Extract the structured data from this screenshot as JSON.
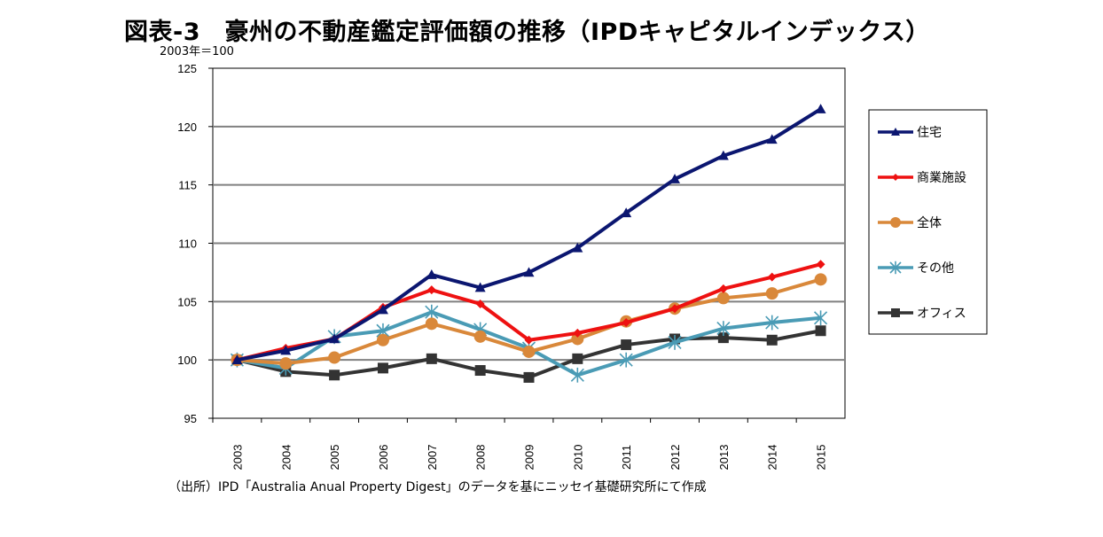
{
  "title": "図表-3　豪州の不動産鑑定評価額の推移（IPDキャピタルインデックス）",
  "unit_label": "2003年＝100",
  "source": "（出所）IPD「Australia Anual Property Digest」のデータを基にニッセイ基礎研究所にて作成",
  "chart_data": {
    "type": "line",
    "title": "図表-3　豪州の不動産鑑定評価額の推移（IPDキャピタルインデックス）",
    "xlabel": "",
    "ylabel": "2003年＝100",
    "categories": [
      "2003",
      "2004",
      "2005",
      "2006",
      "2007",
      "2008",
      "2009",
      "2010",
      "2011",
      "2012",
      "2013",
      "2014",
      "2015"
    ],
    "ylim": [
      95,
      125
    ],
    "yticks": [
      95,
      100,
      105,
      110,
      115,
      120,
      125
    ],
    "grid": true,
    "legend_position": "right",
    "series": [
      {
        "name": "住宅",
        "color": "#0b1670",
        "marker": "triangle",
        "values": [
          100,
          100.8,
          101.8,
          104.3,
          107.3,
          106.2,
          107.5,
          109.6,
          112.6,
          115.5,
          117.5,
          118.9,
          121.5
        ]
      },
      {
        "name": "商業施設",
        "color": "#ee1111",
        "marker": "diamond",
        "values": [
          100,
          101.0,
          101.8,
          104.5,
          106.0,
          104.8,
          101.7,
          102.3,
          103.2,
          104.4,
          106.1,
          107.1,
          108.2
        ]
      },
      {
        "name": "全体",
        "color": "#d9883a",
        "marker": "circle",
        "values": [
          100,
          99.7,
          100.2,
          101.7,
          103.1,
          102.0,
          100.7,
          101.8,
          103.3,
          104.4,
          105.3,
          105.7,
          106.9
        ]
      },
      {
        "name": "その他",
        "color": "#4a9bb5",
        "marker": "star",
        "values": [
          100,
          99.3,
          102.0,
          102.5,
          104.1,
          102.6,
          101.0,
          98.7,
          100.0,
          101.5,
          102.7,
          103.2,
          103.6
        ]
      },
      {
        "name": "オフィス",
        "color": "#333333",
        "marker": "square",
        "values": [
          100,
          99.0,
          98.7,
          99.3,
          100.1,
          99.1,
          98.5,
          100.1,
          101.3,
          101.8,
          101.9,
          101.7,
          102.5
        ]
      }
    ]
  }
}
